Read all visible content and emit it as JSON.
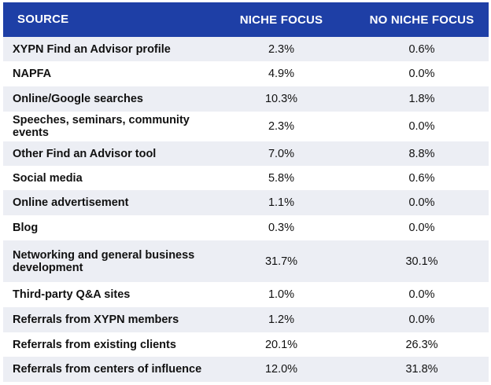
{
  "table": {
    "headers": {
      "source": "SOURCE",
      "niche": "NICHE FOCUS",
      "no_niche": "NO NICHE FOCUS"
    },
    "rows": [
      {
        "source": "XYPN Find an Advisor profile",
        "niche": "2.3%",
        "no_niche": "0.6%"
      },
      {
        "source": "NAPFA",
        "niche": "4.9%",
        "no_niche": "0.0%"
      },
      {
        "source": "Online/Google searches",
        "niche": "10.3%",
        "no_niche": "1.8%"
      },
      {
        "source": "Speeches, seminars, community events",
        "niche": "2.3%",
        "no_niche": "0.0%"
      },
      {
        "source": "Other Find an Advisor tool",
        "niche": "7.0%",
        "no_niche": "8.8%"
      },
      {
        "source": "Social media",
        "niche": "5.8%",
        "no_niche": "0.6%"
      },
      {
        "source": "Online advertisement",
        "niche": "1.1%",
        "no_niche": "0.0%"
      },
      {
        "source": "Blog",
        "niche": "0.3%",
        "no_niche": "0.0%"
      },
      {
        "source": "Networking and general business development",
        "niche": "31.7%",
        "no_niche": "30.1%"
      },
      {
        "source": "Third-party Q&A sites",
        "niche": "1.0%",
        "no_niche": "0.0%"
      },
      {
        "source": "Referrals from XYPN members",
        "niche": "1.2%",
        "no_niche": "0.0%"
      },
      {
        "source": "Referrals from existing clients",
        "niche": "20.1%",
        "no_niche": "26.3%"
      },
      {
        "source": "Referrals from centers of influence",
        "niche": "12.0%",
        "no_niche": "31.8%"
      }
    ]
  },
  "colors": {
    "header_bg": "#1e3fa6",
    "row_stripe": "#eceef4"
  }
}
